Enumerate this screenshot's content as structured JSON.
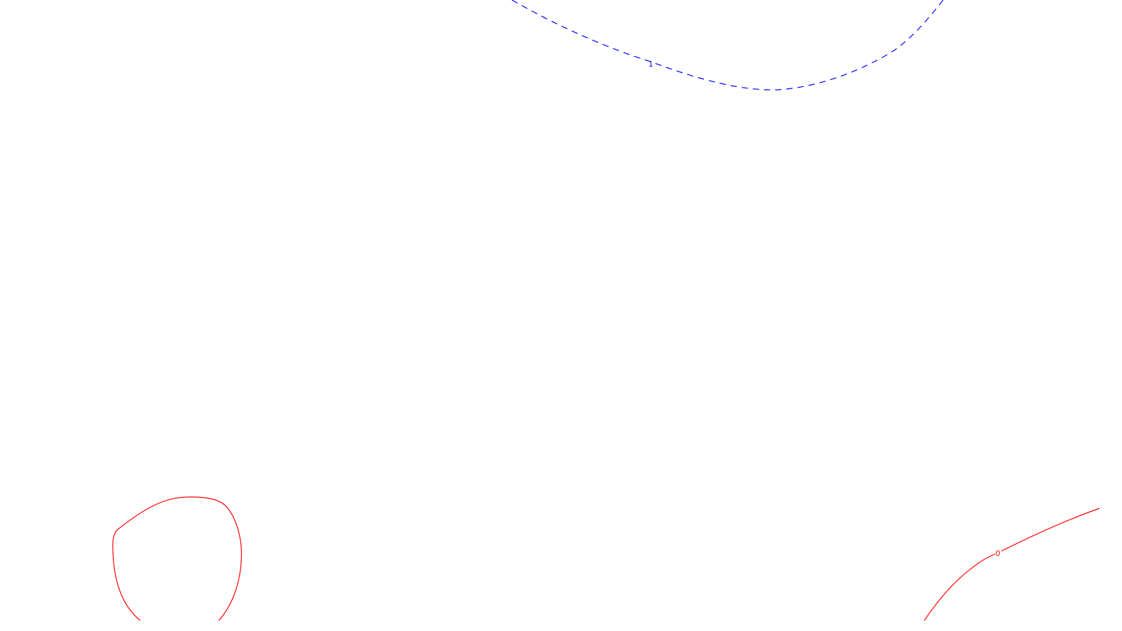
{
  "chart_data": {
    "type": "contour",
    "title": "",
    "xlabel": "",
    "ylabel": "",
    "grid": false,
    "legend": "none",
    "colors": {
      "background": "#ffffff",
      "positive_level": "#0000ff",
      "zero_level": "#ff0000"
    },
    "contours": [
      {
        "level": 1,
        "label": "1",
        "color": "#0000ff",
        "style": "dashed",
        "segments": 1
      },
      {
        "level": 0,
        "label": "0",
        "color": "#ff0000",
        "style": "solid",
        "segments": 2
      }
    ]
  }
}
